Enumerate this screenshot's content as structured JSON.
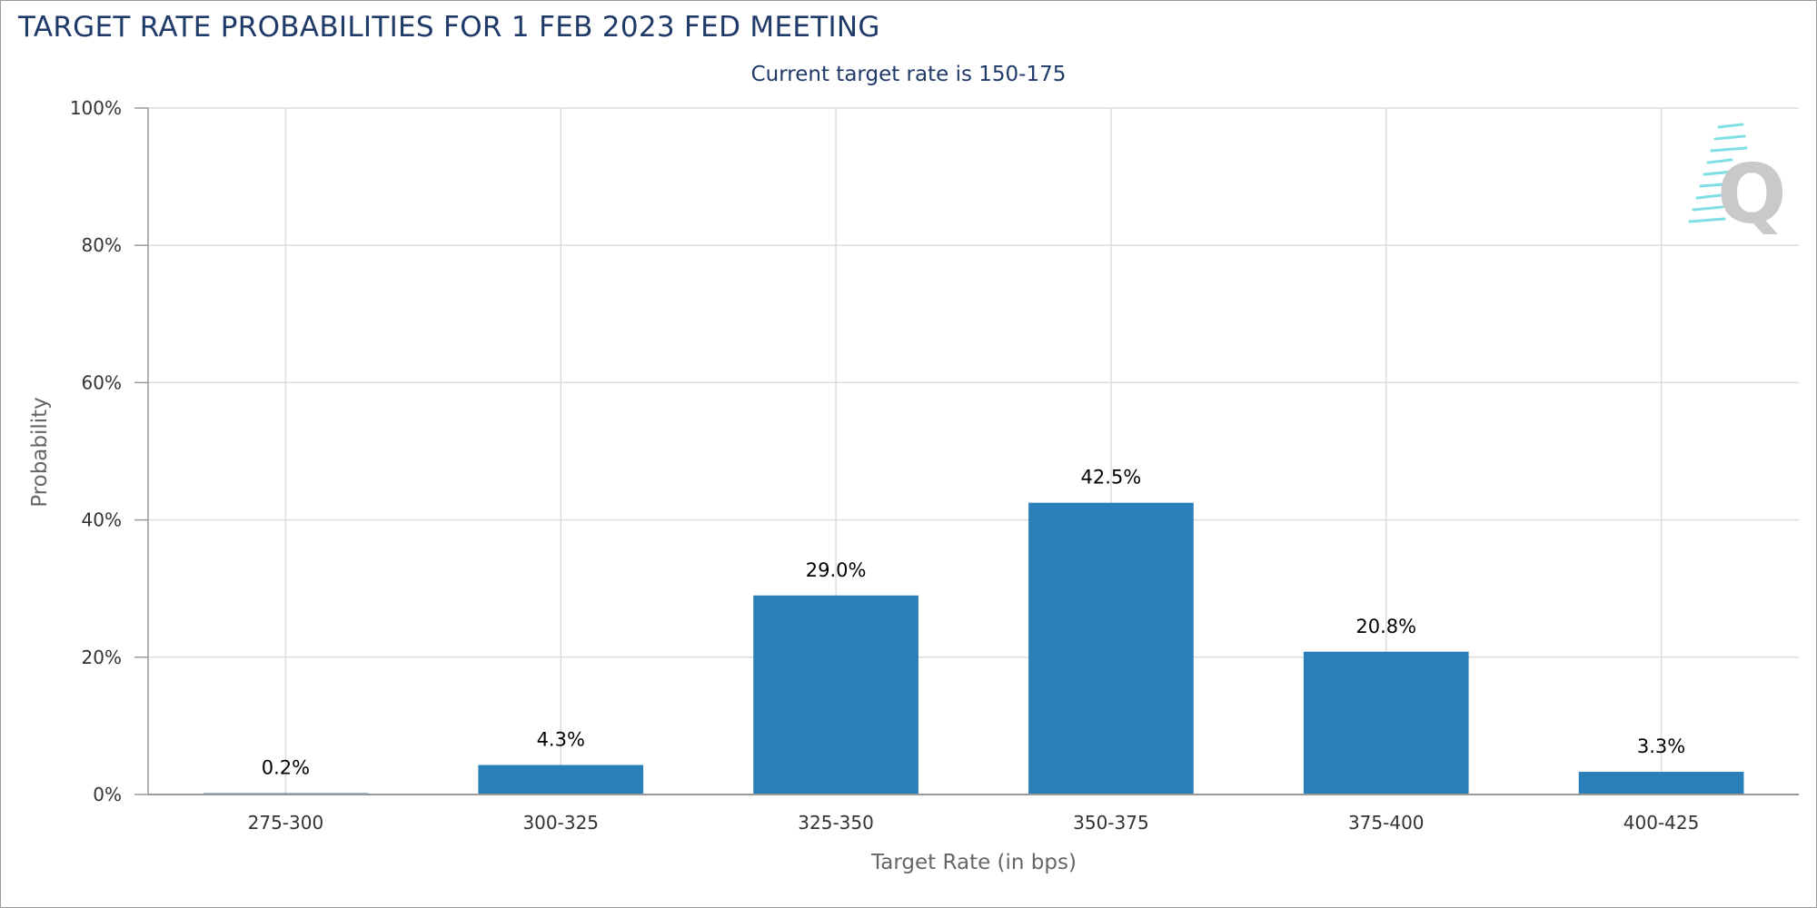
{
  "title": "TARGET RATE PROBABILITIES FOR 1 FEB 2023 FED MEETING",
  "subtitle": "Current target rate is 150-175",
  "watermark_letter": "Q",
  "colors": {
    "bar": "#2a7fb8",
    "title": "#1f3a68",
    "grid": "#dcdcdc",
    "watermark": "#c9c9c9",
    "watermark_accent": "#7fe0e3"
  },
  "chart_data": {
    "type": "bar",
    "categories": [
      "275-300",
      "300-325",
      "325-350",
      "350-375",
      "375-400",
      "400-425"
    ],
    "values": [
      0.2,
      4.3,
      29.0,
      42.5,
      20.8,
      3.3
    ],
    "data_labels": [
      "0.2%",
      "4.3%",
      "29.0%",
      "42.5%",
      "20.8%",
      "3.3%"
    ],
    "title": "TARGET RATE PROBABILITIES FOR 1 FEB 2023 FED MEETING",
    "subtitle": "Current target rate is 150-175",
    "xlabel": "Target Rate (in bps)",
    "ylabel": "Probability",
    "ylim": [
      0,
      100
    ],
    "yticks": [
      0,
      20,
      40,
      60,
      80,
      100
    ],
    "ytick_labels": [
      "0%",
      "20%",
      "40%",
      "60%",
      "80%",
      "100%"
    ],
    "grid": true,
    "legend": "none"
  }
}
